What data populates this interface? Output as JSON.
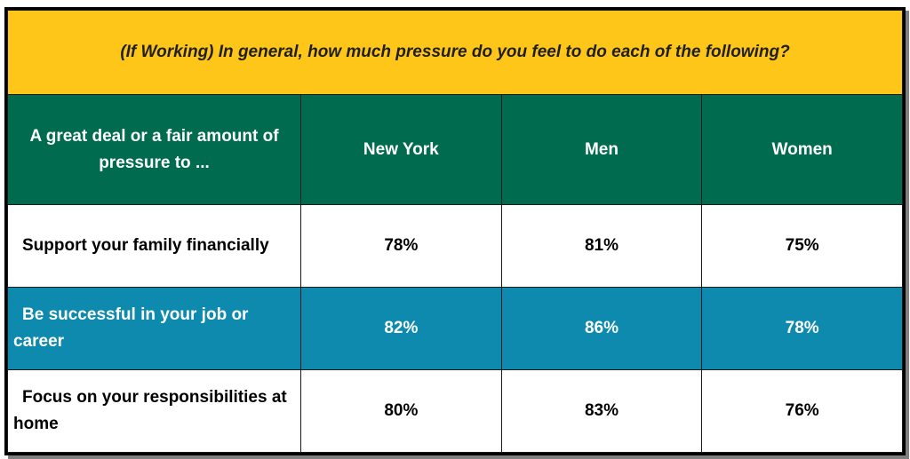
{
  "colors": {
    "title_bg": "#FFC61A",
    "header_bg": "#006B4F",
    "highlight_row_bg": "#0D8AAE",
    "plain_row_bg": "#FFFFFF"
  },
  "chart_data": {
    "type": "table",
    "title": "(If Working) In general, how much pressure do you feel to do each of the following?",
    "row_header": "A great deal or a fair amount of pressure to ...",
    "columns": [
      "New York",
      "Men",
      "Women"
    ],
    "rows": [
      {
        "label": "Support your family financially",
        "values": [
          "78%",
          "81%",
          "75%"
        ],
        "highlight": false
      },
      {
        "label": "Be successful in your job or career",
        "values": [
          "82%",
          "86%",
          "78%"
        ],
        "highlight": true
      },
      {
        "label": "Focus on your responsibilities at home",
        "values": [
          "80%",
          "83%",
          "76%"
        ],
        "highlight": false
      }
    ]
  }
}
